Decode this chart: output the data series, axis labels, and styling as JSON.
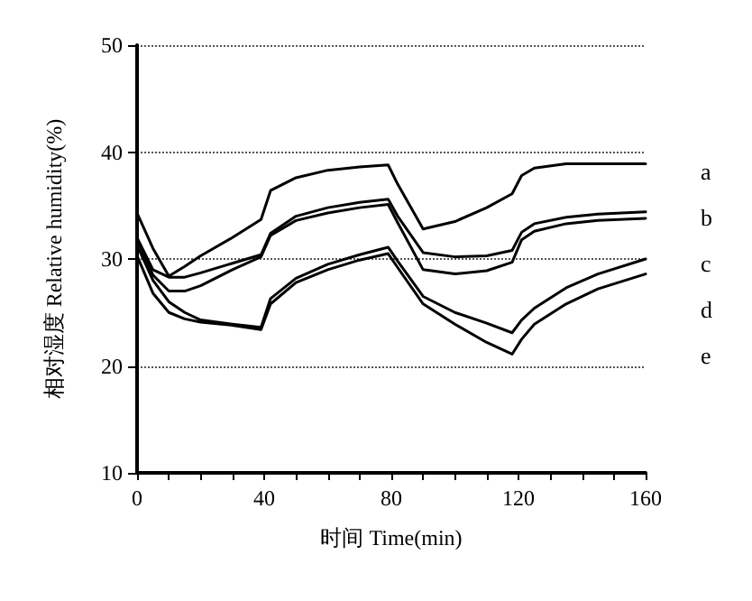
{
  "chart_data": {
    "type": "line",
    "xlabel": "时间 Time(min)",
    "ylabel": "相对湿度 Relative humidity(%)",
    "xlim": [
      0,
      160
    ],
    "ylim": [
      10,
      50
    ],
    "xticks": [
      0,
      {
        "value": 10,
        "label": null
      },
      {
        "value": 20,
        "label": null
      },
      {
        "value": 30,
        "label": null
      },
      40,
      {
        "value": 50,
        "label": null
      },
      {
        "value": 60,
        "label": null
      },
      {
        "value": 70,
        "label": null
      },
      80,
      {
        "value": 90,
        "label": null
      },
      {
        "value": 100,
        "label": null
      },
      {
        "value": 110,
        "label": null
      },
      120,
      {
        "value": 130,
        "label": null
      },
      {
        "value": 140,
        "label": null
      },
      {
        "value": 150,
        "label": null
      },
      160
    ],
    "yticks": [
      10,
      20,
      30,
      40,
      50
    ],
    "grid": "y",
    "legend": "right",
    "marker": "none",
    "line_style": "solid",
    "x": [
      0,
      5,
      10,
      15,
      20,
      30,
      39,
      42,
      50,
      60,
      70,
      79,
      82,
      90,
      100,
      110,
      118,
      121,
      125,
      135,
      145,
      160
    ],
    "series": [
      {
        "name": "a",
        "color": "#000000",
        "values": [
          34.3,
          31,
          28.4,
          29.3,
          30.3,
          32,
          33.7,
          36.4,
          37.6,
          38.3,
          38.6,
          38.8,
          37,
          32.8,
          33.5,
          34.8,
          36.1,
          37.8,
          38.5,
          38.9,
          38.9,
          38.9
        ]
      },
      {
        "name": "b",
        "color": "#000000",
        "values": [
          32,
          29,
          28.3,
          28.3,
          28.7,
          29.6,
          30.4,
          32.4,
          34,
          34.8,
          35.3,
          35.6,
          34,
          30.6,
          30.2,
          30.3,
          30.8,
          32.5,
          33.3,
          33.9,
          34.2,
          34.4
        ]
      },
      {
        "name": "c",
        "color": "#000000",
        "values": [
          31.9,
          28.5,
          27,
          27,
          27.5,
          29,
          30.2,
          32.2,
          33.6,
          34.3,
          34.8,
          35.1,
          33.4,
          29,
          28.6,
          28.9,
          29.7,
          31.8,
          32.6,
          33.3,
          33.6,
          33.8
        ]
      },
      {
        "name": "d",
        "color": "#000000",
        "values": [
          31.3,
          28,
          26,
          25,
          24.3,
          23.9,
          23.6,
          26.3,
          28.2,
          29.5,
          30.4,
          31.1,
          29.8,
          26.5,
          25,
          24,
          23.1,
          24.3,
          25.4,
          27.3,
          28.6,
          30
        ]
      },
      {
        "name": "e",
        "color": "#000000",
        "values": [
          30.3,
          26.8,
          25,
          24.4,
          24.1,
          23.8,
          23.4,
          25.8,
          27.8,
          29,
          29.9,
          30.5,
          29.2,
          25.8,
          23.9,
          22.2,
          21.1,
          22.5,
          23.9,
          25.8,
          27.2,
          28.6
        ]
      }
    ]
  }
}
